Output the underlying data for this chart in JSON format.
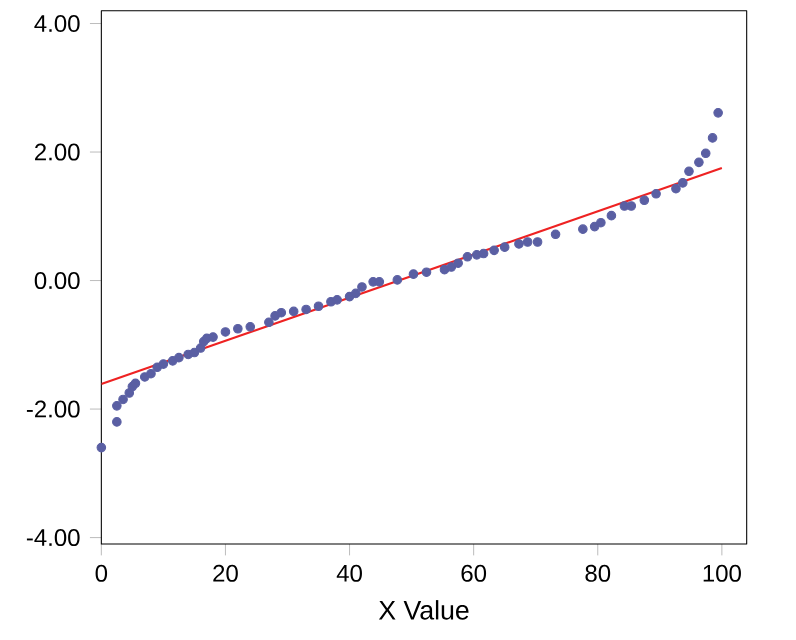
{
  "chart_data": {
    "type": "scatter",
    "xlabel": "X Value",
    "xlim": [
      0,
      104
    ],
    "ylim": [
      -4.1,
      4.2
    ],
    "xticks": [
      0,
      20,
      40,
      60,
      80,
      100
    ],
    "yticks": [
      {
        "value": -4,
        "label": "-4.00"
      },
      {
        "value": -2,
        "label": "-2.00"
      },
      {
        "value": 0,
        "label": "0.00"
      },
      {
        "value": 2,
        "label": "2.00"
      },
      {
        "value": 4,
        "label": "4.00"
      }
    ],
    "grid": false,
    "series": [
      {
        "color": "#5a5fa3",
        "marker": "circle",
        "x": [
          0,
          2.5,
          2.5,
          3.5,
          4.5,
          5,
          5.5,
          7,
          8,
          9,
          10,
          11.5,
          12.5,
          14,
          15,
          16,
          16.5,
          17,
          18,
          20,
          22,
          24,
          27,
          28,
          29,
          31,
          33,
          35,
          37,
          38,
          40,
          41,
          42,
          43.8,
          44.8,
          47.7,
          50.3,
          52.4,
          55.3,
          56.4,
          57.5,
          59,
          60.5,
          61.6,
          63.3,
          65,
          67.3,
          68.7,
          70.3,
          73.2,
          77.6,
          79.5,
          80.5,
          82.2,
          84.3,
          85.4,
          87.5,
          89.4,
          92.6,
          93.7,
          94.7,
          96.3,
          97.4,
          98.5,
          99.4
        ],
        "values": [
          -2.6,
          -2.2,
          -1.95,
          -1.85,
          -1.75,
          -1.65,
          -1.6,
          -1.5,
          -1.45,
          -1.35,
          -1.3,
          -1.25,
          -1.2,
          -1.15,
          -1.12,
          -1.05,
          -0.95,
          -0.9,
          -0.88,
          -0.8,
          -0.75,
          -0.72,
          -0.65,
          -0.55,
          -0.5,
          -0.48,
          -0.45,
          -0.4,
          -0.33,
          -0.3,
          -0.25,
          -0.2,
          -0.1,
          -0.02,
          -0.02,
          0.01,
          0.1,
          0.13,
          0.17,
          0.21,
          0.27,
          0.37,
          0.4,
          0.42,
          0.47,
          0.52,
          0.57,
          0.6,
          0.6,
          0.72,
          0.8,
          0.84,
          0.9,
          1.01,
          1.16,
          1.16,
          1.25,
          1.35,
          1.43,
          1.52,
          1.7,
          1.84,
          1.98,
          2.22,
          2.61
        ]
      },
      {
        "type": "line",
        "color": "#ee2222",
        "line_style": "solid",
        "marker": "none",
        "x": [
          0,
          100
        ],
        "values": [
          -1.61,
          1.75
        ]
      }
    ]
  }
}
